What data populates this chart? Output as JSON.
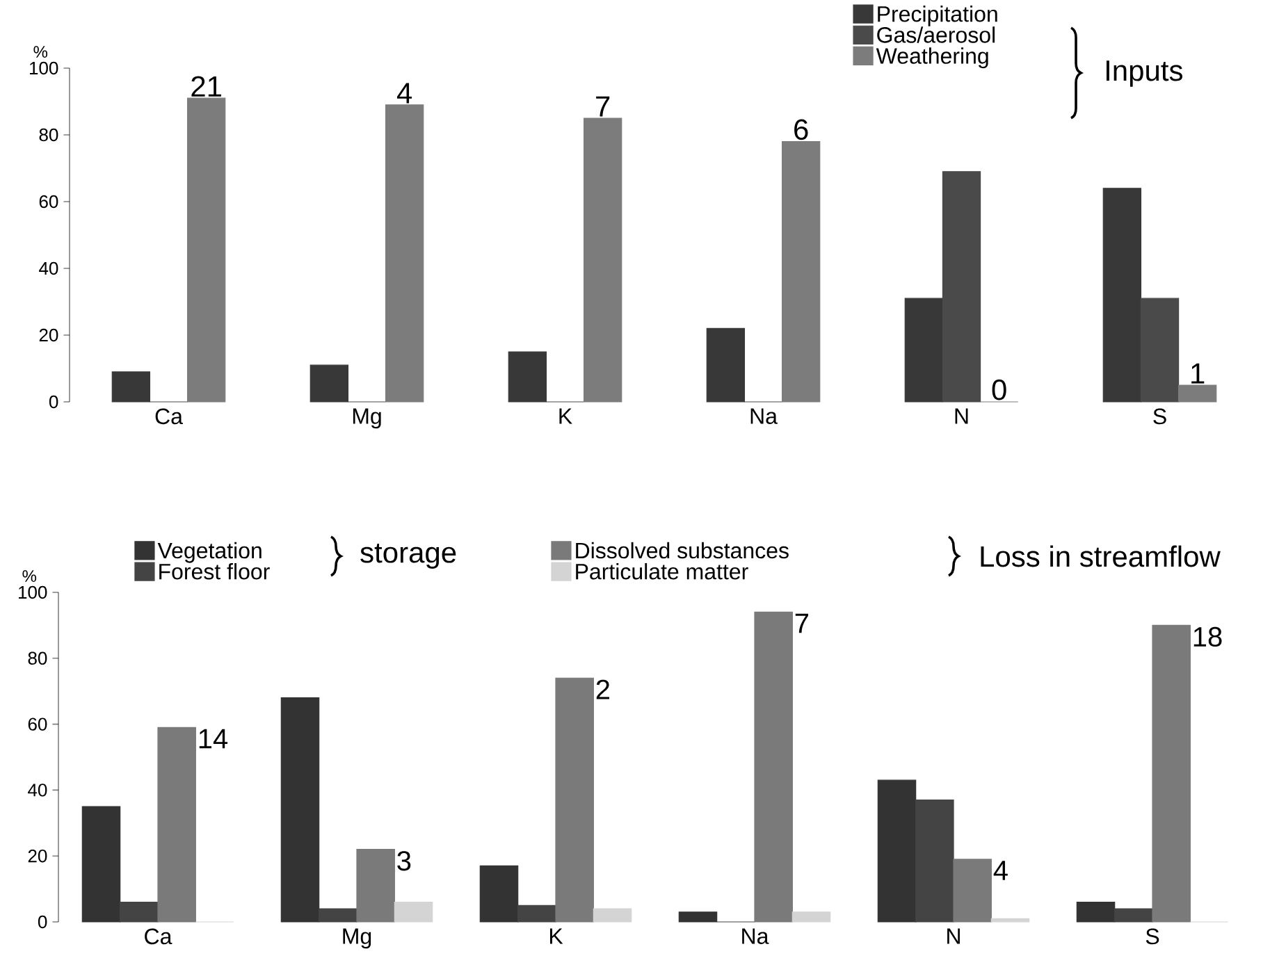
{
  "chart_data": [
    {
      "type": "bar",
      "ylabel": "%",
      "categories": [
        "Ca",
        "Mg",
        "K",
        "Na",
        "N",
        "S"
      ],
      "series": [
        {
          "name": "Precipitation",
          "color": "#383838",
          "values": [
            9,
            11,
            15,
            22,
            31,
            64
          ]
        },
        {
          "name": "Gas/aerosol",
          "color": "#4a4a4a",
          "values": [
            0,
            0,
            0,
            0,
            69,
            31
          ]
        },
        {
          "name": "Weathering",
          "color": "#7c7c7c",
          "values": [
            91,
            89,
            85,
            78,
            0,
            5
          ]
        }
      ],
      "ylim": [
        0,
        100
      ],
      "yticks": [
        0,
        20,
        40,
        60,
        80,
        100
      ],
      "legend": "top right",
      "annotations": [
        "Inputs",
        "21",
        "4",
        "7",
        "6",
        "0",
        "1"
      ]
    },
    {
      "type": "bar",
      "ylabel": "%",
      "categories": [
        "Ca",
        "Mg",
        "K",
        "Na",
        "N",
        "S"
      ],
      "series": [
        {
          "name": "Vegetation",
          "color": "#333333",
          "values": [
            35,
            68,
            17,
            3,
            43,
            6
          ]
        },
        {
          "name": "Forest floor",
          "color": "#444444",
          "values": [
            6,
            4,
            5,
            0,
            37,
            4
          ]
        },
        {
          "name": "Dissolved substances",
          "color": "#7a7a7a",
          "values": [
            59,
            22,
            74,
            94,
            19,
            90
          ]
        },
        {
          "name": "Particulate matter",
          "color": "#d4d4d4",
          "values": [
            0,
            6,
            4,
            3,
            1,
            0
          ]
        }
      ],
      "ylim": [
        0,
        100
      ],
      "yticks": [
        0,
        20,
        40,
        60,
        80,
        100
      ],
      "legend": "top left",
      "annotations": [
        "storage",
        "Loss in streamflow",
        {
          "text": "14",
          "x": "Ca",
          "y": 59
        },
        {
          "text": "3",
          "x": "Mg",
          "y": 22
        },
        {
          "text": "2",
          "x": "K",
          "y": 74
        },
        {
          "text": "7",
          "x": "Na",
          "y": 94
        },
        {
          "text": "4",
          "x": "N",
          "y": 19
        },
        {
          "text": "18",
          "x": "S",
          "y": 90
        }
      ]
    }
  ]
}
